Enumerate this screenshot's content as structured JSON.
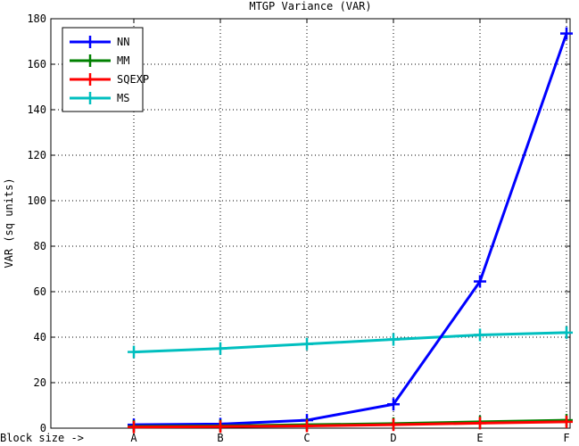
{
  "chart_data": {
    "type": "line",
    "title": "MTGP Variance (VAR)",
    "ylabel": "VAR (sq units)",
    "x_prefix_label": "Block size ->",
    "categories": [
      "A",
      "B",
      "C",
      "D",
      "E",
      "F"
    ],
    "ylim": [
      0,
      180
    ],
    "yticks": [
      0,
      20,
      40,
      60,
      80,
      100,
      120,
      140,
      160,
      180
    ],
    "grid": true,
    "legend_position": "top-left",
    "series": [
      {
        "name": "NN",
        "color": "#0000ff",
        "values": [
          1.5,
          1.8,
          3.5,
          10.5,
          64.5,
          173.5
        ]
      },
      {
        "name": "MM",
        "color": "#008000",
        "values": [
          0.8,
          1.0,
          1.5,
          2.0,
          2.8,
          3.5
        ]
      },
      {
        "name": "SQEXP",
        "color": "#ff0000",
        "values": [
          0.5,
          0.7,
          1.0,
          1.5,
          2.2,
          2.8
        ]
      },
      {
        "name": "MS",
        "color": "#00bfbf",
        "values": [
          33.5,
          35.0,
          37.0,
          39.0,
          41.0,
          42.0
        ]
      }
    ]
  }
}
